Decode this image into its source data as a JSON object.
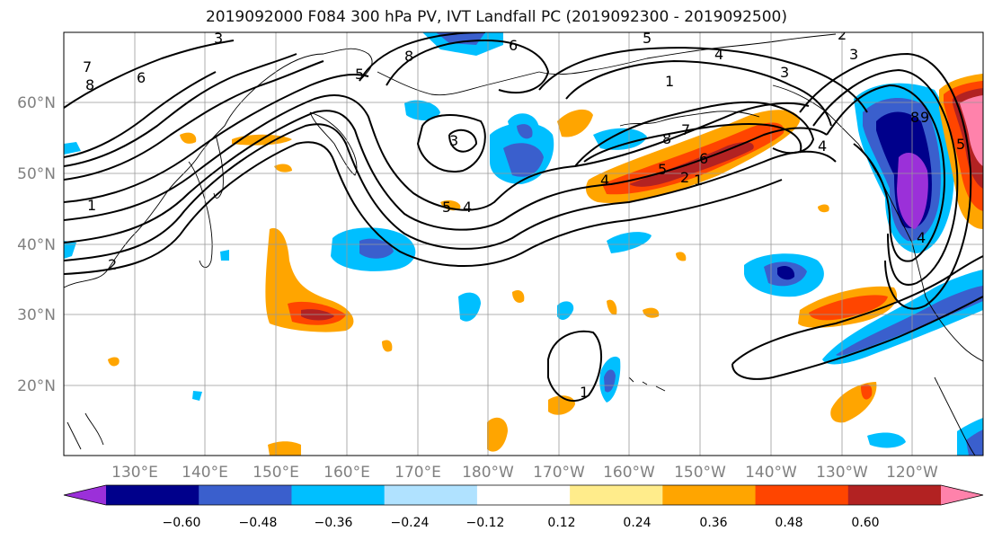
{
  "title": "2019092000 F084 300 hPa PV, IVT Landfall PC (2019092300 - 2019092500)",
  "lat_labels": [
    "60°N",
    "50°N",
    "40°N",
    "30°N",
    "20°N"
  ],
  "lon_labels": [
    "130°E",
    "140°E",
    "150°E",
    "160°E",
    "170°E",
    "180°W",
    "170°W",
    "160°W",
    "150°W",
    "140°W",
    "130°W",
    "120°W"
  ],
  "colorbar": {
    "ticks": [
      "−0.60",
      "−0.48",
      "−0.36",
      "−0.24",
      "−0.12",
      "0.12",
      "0.24",
      "0.36",
      "0.48",
      "0.60"
    ],
    "colors": [
      "#9b30d9",
      "#00008b",
      "#3a5fcd",
      "#00bfff",
      "#b0e2ff",
      "#ffffff",
      "#ffec8b",
      "#ffa500",
      "#ff4500",
      "#b22222",
      "#ff82ab"
    ]
  },
  "contour_labels": [
    "3",
    "6",
    "5",
    "4",
    "3",
    "2",
    "1",
    "8",
    "7",
    "6",
    "8",
    "5",
    "4",
    "1",
    "3",
    "5",
    "4",
    "3",
    "8",
    "7",
    "5",
    "6",
    "2",
    "1",
    "4",
    "8",
    "9",
    "5",
    "4",
    "2",
    "1"
  ]
}
